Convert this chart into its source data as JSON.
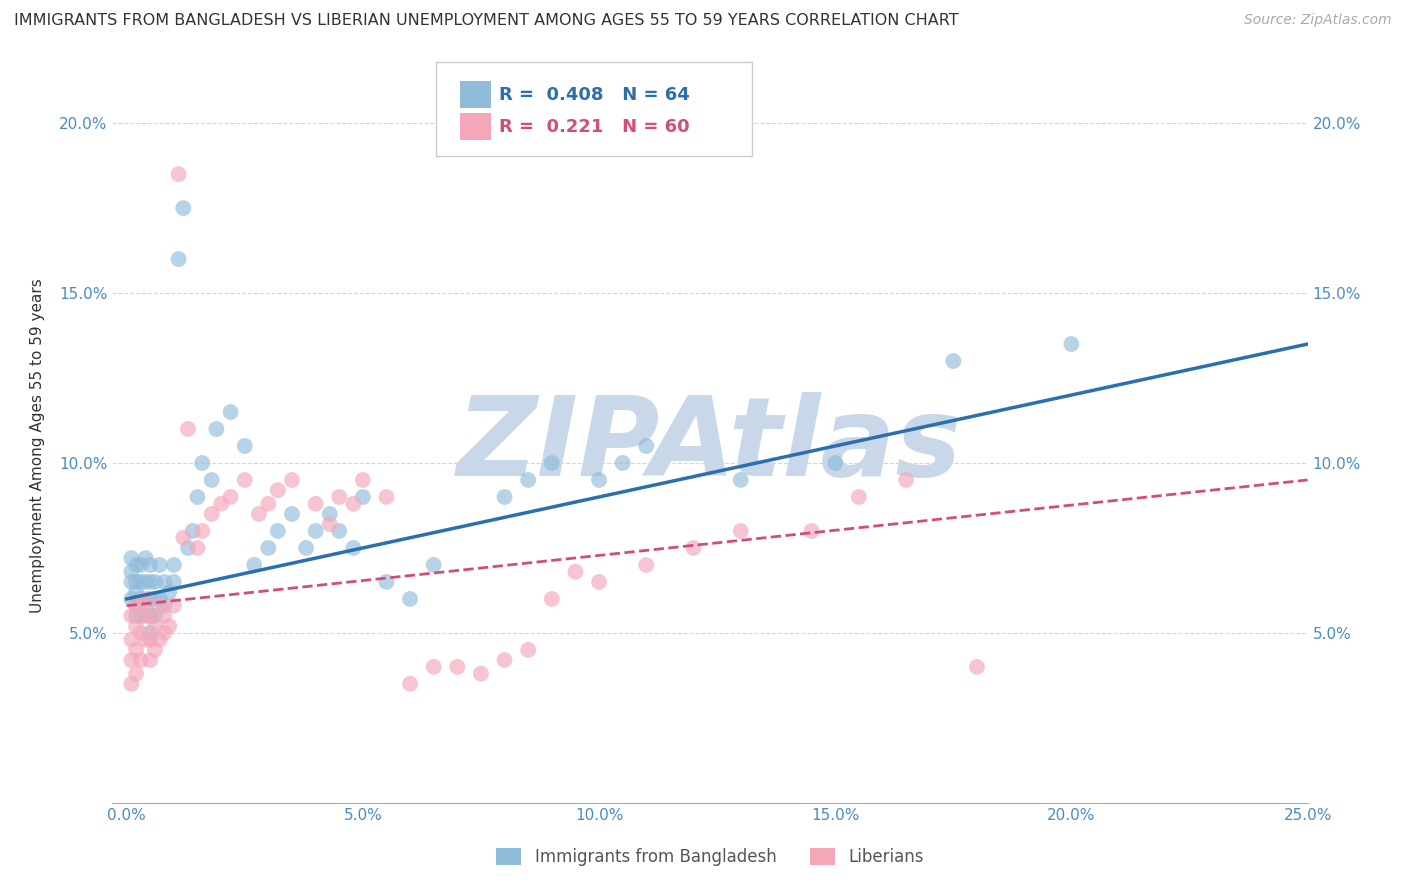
{
  "title": "IMMIGRANTS FROM BANGLADESH VS LIBERIAN UNEMPLOYMENT AMONG AGES 55 TO 59 YEARS CORRELATION CHART",
  "source": "Source: ZipAtlas.com",
  "ylabel": "Unemployment Among Ages 55 to 59 years",
  "xlim": [
    0.0,
    0.25
  ],
  "ylim": [
    0.0,
    0.21
  ],
  "xticks": [
    0.0,
    0.05,
    0.1,
    0.15,
    0.2,
    0.25
  ],
  "yticks": [
    0.05,
    0.1,
    0.15,
    0.2
  ],
  "xtick_labels": [
    "0.0%",
    "5.0%",
    "10.0%",
    "15.0%",
    "20.0%",
    "25.0%"
  ],
  "ytick_labels": [
    "5.0%",
    "10.0%",
    "15.0%",
    "20.0%"
  ],
  "legend1_label": "Immigrants from Bangladesh",
  "legend2_label": "Liberians",
  "R1": 0.408,
  "N1": 64,
  "R2": 0.221,
  "N2": 60,
  "color_blue": "#8fbcdb",
  "color_pink": "#f4a7b9",
  "line_color_blue": "#2c6fad",
  "line_color_pink": "#d44d7a",
  "line_color_pink_dashed": "#d44d7a",
  "watermark": "ZIPAtlas",
  "watermark_color": "#c8d8e8",
  "background_color": "#ffffff",
  "title_fontsize": 11.5,
  "source_fontsize": 10,
  "blue_x": [
    0.001,
    0.001,
    0.001,
    0.001,
    0.002,
    0.002,
    0.002,
    0.002,
    0.002,
    0.003,
    0.003,
    0.003,
    0.003,
    0.004,
    0.004,
    0.004,
    0.005,
    0.005,
    0.005,
    0.005,
    0.005,
    0.006,
    0.006,
    0.006,
    0.007,
    0.007,
    0.008,
    0.008,
    0.009,
    0.01,
    0.01,
    0.011,
    0.012,
    0.013,
    0.014,
    0.015,
    0.016,
    0.018,
    0.019,
    0.022,
    0.025,
    0.027,
    0.03,
    0.032,
    0.035,
    0.038,
    0.04,
    0.043,
    0.045,
    0.048,
    0.05,
    0.055,
    0.06,
    0.065,
    0.08,
    0.085,
    0.09,
    0.1,
    0.105,
    0.11,
    0.13,
    0.15,
    0.175,
    0.2
  ],
  "blue_y": [
    0.06,
    0.065,
    0.068,
    0.072,
    0.055,
    0.058,
    0.062,
    0.065,
    0.07,
    0.055,
    0.06,
    0.065,
    0.07,
    0.058,
    0.065,
    0.072,
    0.05,
    0.055,
    0.06,
    0.065,
    0.07,
    0.055,
    0.06,
    0.065,
    0.06,
    0.07,
    0.058,
    0.065,
    0.062,
    0.065,
    0.07,
    0.16,
    0.175,
    0.075,
    0.08,
    0.09,
    0.1,
    0.095,
    0.11,
    0.115,
    0.105,
    0.07,
    0.075,
    0.08,
    0.085,
    0.075,
    0.08,
    0.085,
    0.08,
    0.075,
    0.09,
    0.065,
    0.06,
    0.07,
    0.09,
    0.095,
    0.1,
    0.095,
    0.1,
    0.105,
    0.095,
    0.1,
    0.13,
    0.135
  ],
  "pink_x": [
    0.001,
    0.001,
    0.001,
    0.001,
    0.002,
    0.002,
    0.002,
    0.002,
    0.003,
    0.003,
    0.003,
    0.004,
    0.004,
    0.004,
    0.005,
    0.005,
    0.005,
    0.006,
    0.006,
    0.007,
    0.007,
    0.008,
    0.008,
    0.009,
    0.01,
    0.011,
    0.012,
    0.013,
    0.015,
    0.016,
    0.018,
    0.02,
    0.022,
    0.025,
    0.028,
    0.03,
    0.032,
    0.035,
    0.04,
    0.043,
    0.045,
    0.048,
    0.05,
    0.055,
    0.06,
    0.065,
    0.07,
    0.075,
    0.08,
    0.085,
    0.09,
    0.095,
    0.1,
    0.11,
    0.12,
    0.13,
    0.145,
    0.155,
    0.165,
    0.18
  ],
  "pink_y": [
    0.035,
    0.042,
    0.048,
    0.055,
    0.038,
    0.045,
    0.052,
    0.058,
    0.042,
    0.05,
    0.058,
    0.048,
    0.055,
    0.06,
    0.042,
    0.048,
    0.055,
    0.045,
    0.052,
    0.048,
    0.058,
    0.05,
    0.055,
    0.052,
    0.058,
    0.185,
    0.078,
    0.11,
    0.075,
    0.08,
    0.085,
    0.088,
    0.09,
    0.095,
    0.085,
    0.088,
    0.092,
    0.095,
    0.088,
    0.082,
    0.09,
    0.088,
    0.095,
    0.09,
    0.035,
    0.04,
    0.04,
    0.038,
    0.042,
    0.045,
    0.06,
    0.068,
    0.065,
    0.07,
    0.075,
    0.08,
    0.08,
    0.09,
    0.095,
    0.04
  ],
  "blue_trend_x0": 0.0,
  "blue_trend_y0": 0.06,
  "blue_trend_x1": 0.25,
  "blue_trend_y1": 0.135,
  "pink_trend_x0": 0.0,
  "pink_trend_y0": 0.058,
  "pink_trend_x1": 0.25,
  "pink_trend_y1": 0.095
}
